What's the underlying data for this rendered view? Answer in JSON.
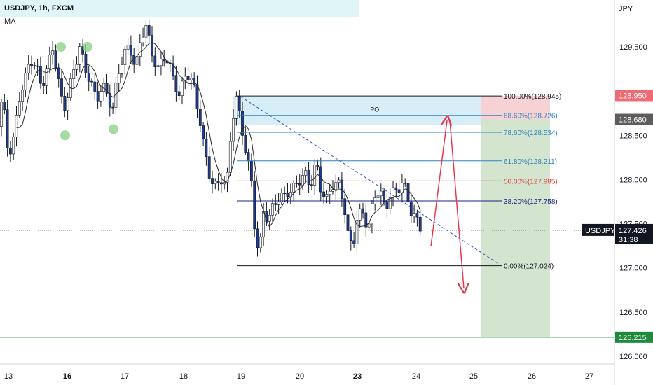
{
  "header": {
    "symbol_line": "USDJPY, 1h, FXCM",
    "indicator": "MA",
    "currency": "JPY"
  },
  "chart_data": {
    "type": "candlestick",
    "symbol": "USDJPY",
    "timeframe": "1h",
    "x_ticks": [
      "13",
      "16",
      "17",
      "18",
      "19",
      "20",
      "23",
      "24",
      "25",
      "26",
      "27"
    ],
    "x_ticks_bold": [
      "16",
      "23"
    ],
    "y_ticks": [
      "129.500",
      "128.500",
      "128.000",
      "127.500",
      "127.000",
      "126.500",
      "126.000"
    ],
    "y_range": [
      125.78,
      130.32
    ],
    "poi_label": "POI",
    "fib_levels": [
      {
        "label": "100.00%(128.945)",
        "value": 128.945,
        "color": "#131722"
      },
      {
        "label": "88.60%(128.726)",
        "value": 128.726,
        "color": "#2f83c1"
      },
      {
        "label": "78.60%(128.534)",
        "value": 128.534,
        "color": "#2f83c1"
      },
      {
        "label": "61.80%(128.211)",
        "value": 128.211,
        "color": "#2f83c1"
      },
      {
        "label": "50.00%(127.985)",
        "value": 127.985,
        "color": "#e53935"
      },
      {
        "label": "38.20%(127.758)",
        "value": 127.758,
        "color": "#1a237e"
      },
      {
        "label": "0.00%(127.024)",
        "value": 127.024,
        "color": "#131722"
      }
    ],
    "price_tags": [
      {
        "text": "128.950",
        "value": 128.95,
        "bg": "#f06a74"
      },
      {
        "text": "128.680",
        "value": 128.68,
        "bg": "#5d5d5d"
      },
      {
        "text": "126.215",
        "value": 126.215,
        "bg": "#1f8a3b"
      }
    ],
    "current": {
      "symbol": "USDJPY",
      "price": "127.426",
      "value": 127.426,
      "countdown": "31:38"
    },
    "target_line": 126.215,
    "colors": {
      "bull": "#ffffff",
      "bear": "#1e3a8a",
      "ma": "#2b2b2b",
      "projection": "#e53950"
    }
  }
}
